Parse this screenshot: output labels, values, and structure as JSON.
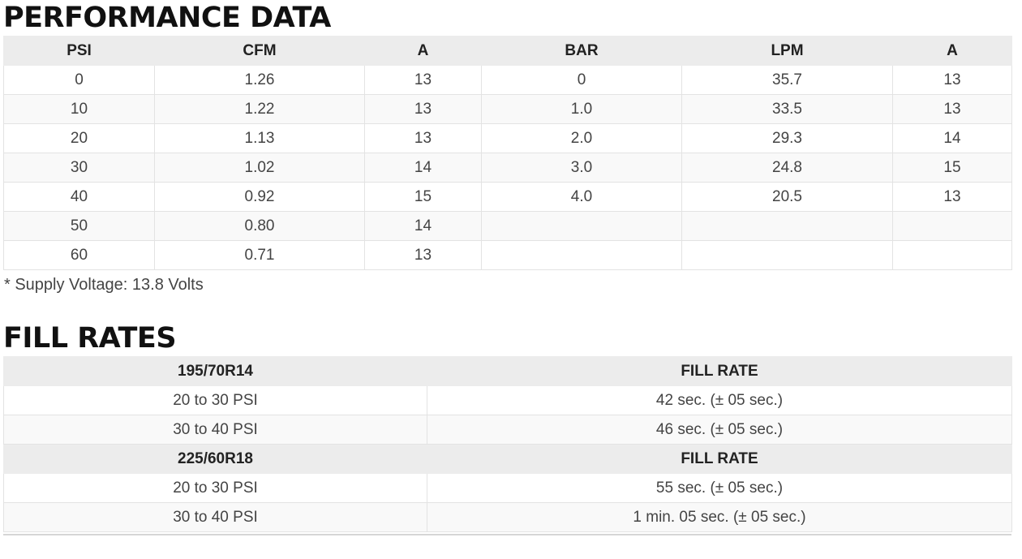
{
  "performance": {
    "title": "PERFORMANCE DATA",
    "headers": [
      "PSI",
      "CFM",
      "A",
      "BAR",
      "LPM",
      "A"
    ],
    "rows": [
      [
        "0",
        "1.26",
        "13",
        "0",
        "35.7",
        "13"
      ],
      [
        "10",
        "1.22",
        "13",
        "1.0",
        "33.5",
        "13"
      ],
      [
        "20",
        "1.13",
        "13",
        "2.0",
        "29.3",
        "14"
      ],
      [
        "30",
        "1.02",
        "14",
        "3.0",
        "24.8",
        "15"
      ],
      [
        "40",
        "0.92",
        "15",
        "4.0",
        "20.5",
        "13"
      ],
      [
        "50",
        "0.80",
        "14",
        "",
        "",
        ""
      ],
      [
        "60",
        "0.71",
        "13",
        "",
        "",
        ""
      ]
    ],
    "note": "* Supply Voltage: 13.8 Volts"
  },
  "fill_rates": {
    "title": "FILL RATES",
    "groups": [
      {
        "header": [
          "195/70R14",
          "FILL RATE"
        ],
        "rows": [
          [
            "20 to 30 PSI",
            "42 sec. (± 05 sec.)"
          ],
          [
            "30 to 40 PSI",
            "46 sec. (± 05 sec.)"
          ]
        ]
      },
      {
        "header": [
          "225/60R18",
          "FILL RATE"
        ],
        "rows": [
          [
            "20 to 30 PSI",
            "55 sec. (± 05 sec.)"
          ],
          [
            "30 to 40 PSI",
            "1 min. 05 sec. (± 05 sec.)"
          ]
        ]
      }
    ]
  }
}
